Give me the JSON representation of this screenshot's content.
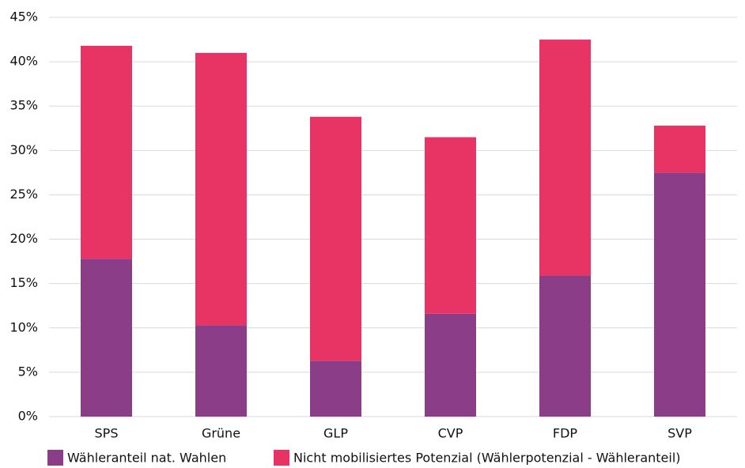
{
  "chart_data": {
    "type": "stacked_bar",
    "categories": [
      "SPS",
      "Grüne",
      "GLP",
      "CVP",
      "FDP",
      "SVP"
    ],
    "series": [
      {
        "name": "Wähleranteil nat. Wahlen",
        "color": "#8b3e87",
        "values": [
          17.8,
          10.3,
          6.3,
          11.6,
          15.9,
          27.5
        ]
      },
      {
        "name": "Nicht mobilisiertes Potenzial (Wählerpotenzial - Wähleranteil)",
        "color": "#e83464",
        "values": [
          24.0,
          30.7,
          27.5,
          19.9,
          26.6,
          5.3
        ]
      }
    ],
    "ylim": [
      0,
      45
    ],
    "yticks": [
      {
        "value": 0,
        "label": "0%"
      },
      {
        "value": 5,
        "label": "5%"
      },
      {
        "value": 10,
        "label": "10%"
      },
      {
        "value": 15,
        "label": "15%"
      },
      {
        "value": 20,
        "label": "20%"
      },
      {
        "value": 25,
        "label": "25%"
      },
      {
        "value": 30,
        "label": "30%"
      },
      {
        "value": 35,
        "label": "35%"
      },
      {
        "value": 40,
        "label": "40%"
      },
      {
        "value": 45,
        "label": "45%"
      }
    ],
    "grid": true,
    "legend": "bottom"
  }
}
